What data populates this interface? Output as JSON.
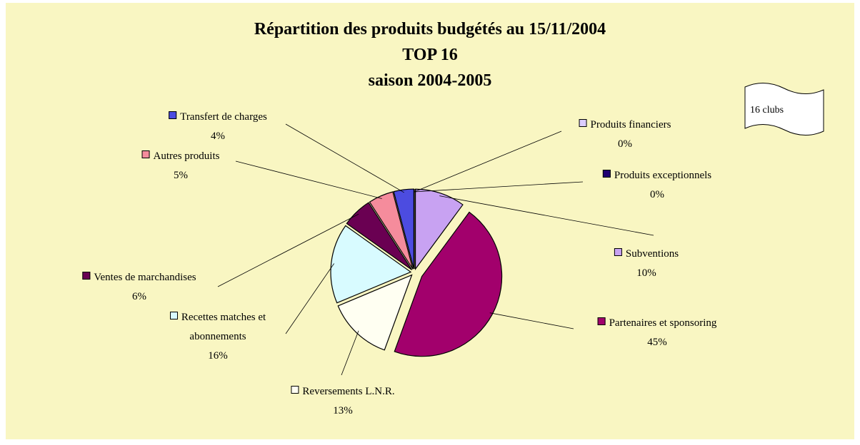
{
  "chart_data": {
    "type": "pie",
    "title": [
      "Répartition des produits budgétés au 15/11/2004",
      "TOP 16",
      "saison 2004-2005"
    ],
    "annotation": "16 clubs",
    "categories": [
      "Subventions",
      "Partenaires et sponsoring",
      "Reversements L.N.R.",
      "Recettes matches et abonnements",
      "Ventes de marchandises",
      "Autres produits",
      "Transfert de charges",
      "Produits financiers",
      "Produits exceptionnels"
    ],
    "values": [
      10,
      45,
      13,
      16,
      6,
      5,
      4,
      0,
      0
    ],
    "value_labels": [
      "10%",
      "45%",
      "13%",
      "16%",
      "6%",
      "5%",
      "4%",
      "0%",
      "0%"
    ],
    "colors": [
      "#c8a2f2",
      "#a2006c",
      "#fffff2",
      "#d8fbff",
      "#6a0052",
      "#f58c9c",
      "#4c4ce0",
      "#dccdff",
      "#200072"
    ]
  }
}
